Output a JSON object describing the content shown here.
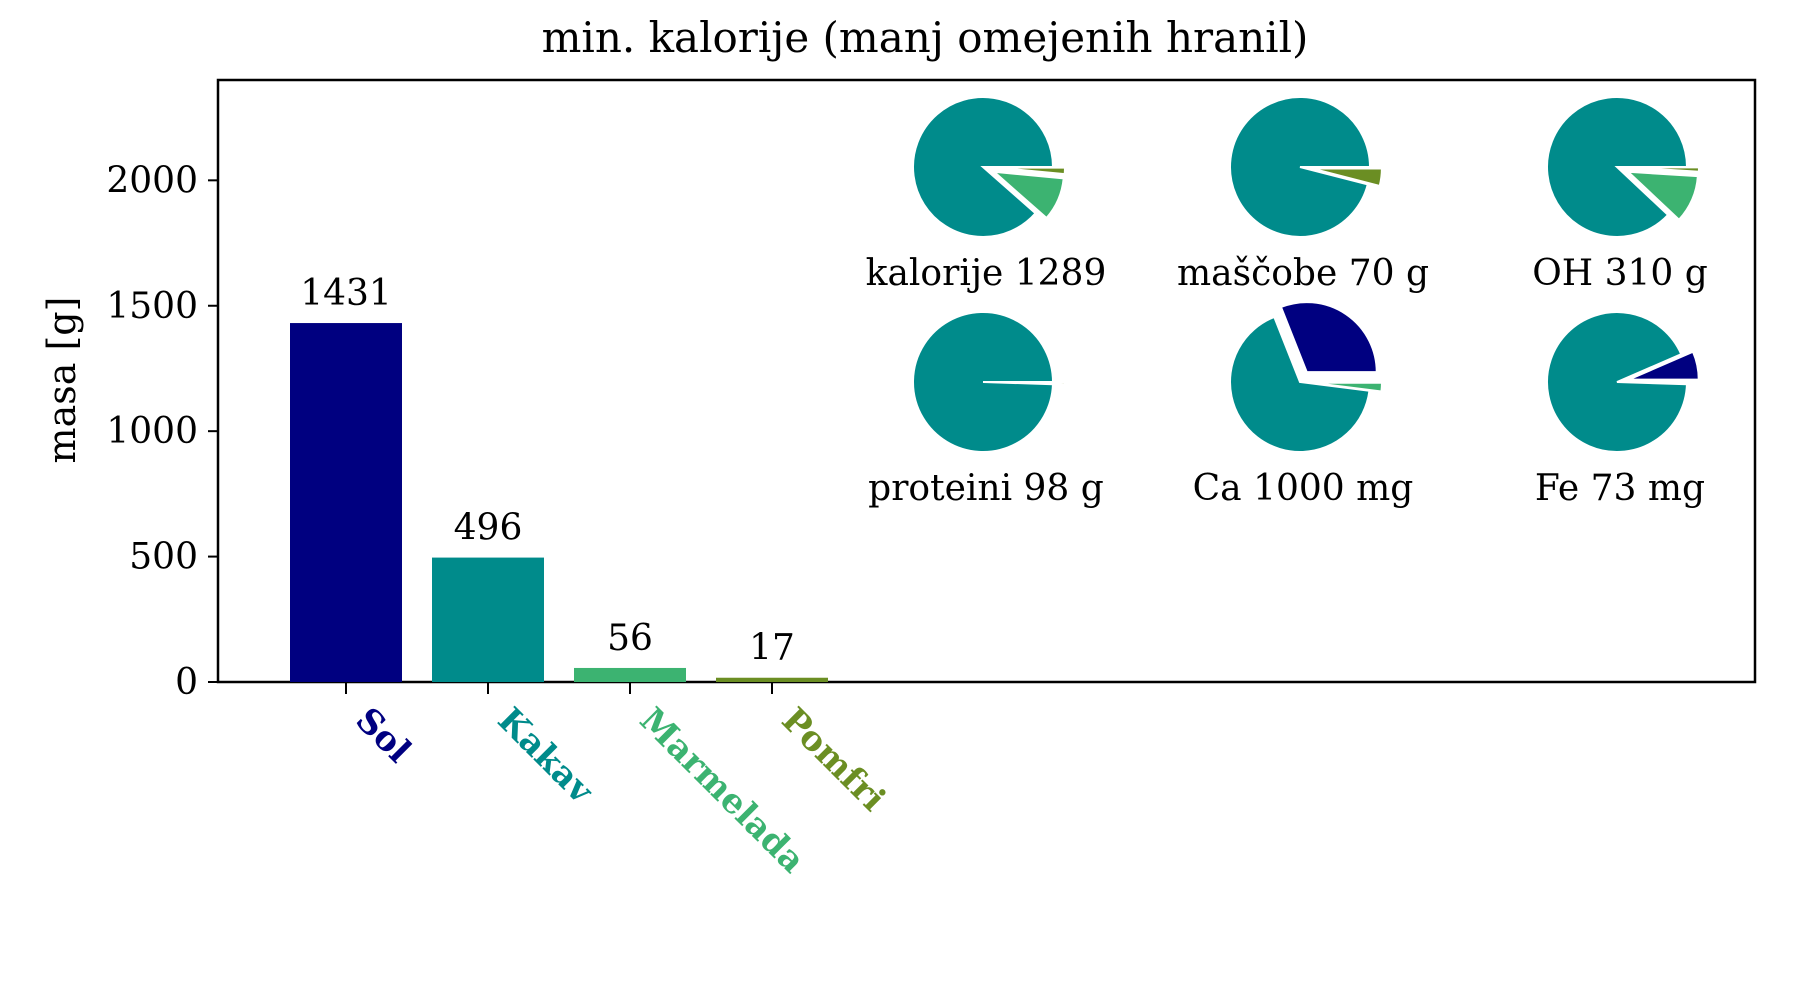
{
  "chart_data": {
    "type": "bar",
    "title": "min. kalorije (manj omejenih hranil)",
    "xlabel": "",
    "ylabel": "masa [g]",
    "ylim": [
      0,
      2400
    ],
    "yticks": [
      0,
      500,
      1000,
      1500,
      2000
    ],
    "categories": [
      "Sol",
      "Kakav",
      "Marmelada",
      "Pomfri"
    ],
    "values": [
      1431,
      496,
      56,
      17
    ],
    "data_labels": [
      "1431",
      "496",
      "56",
      "17"
    ],
    "colors": {
      "Sol": "#000080",
      "Kakav": "#008B8B",
      "Marmelada": "#3CB371",
      "Pomfri": "#6B8E23"
    },
    "grid": false,
    "inset_pies": [
      {
        "label": "kalorije 1289",
        "shares": {
          "Sol": 0.0,
          "Kakav": 0.885,
          "Marmelada": 0.1,
          "Pomfri": 0.015
        }
      },
      {
        "label": "maščobe 70 g",
        "shares": {
          "Sol": 0.0,
          "Kakav": 0.96,
          "Marmelada": 0.0,
          "Pomfri": 0.04
        }
      },
      {
        "label": "OH 310 g",
        "shares": {
          "Sol": 0.0,
          "Kakav": 0.88,
          "Marmelada": 0.11,
          "Pomfri": 0.01
        }
      },
      {
        "label": "proteini 98 g",
        "shares": {
          "Sol": 0.0,
          "Kakav": 0.995,
          "Marmelada": 0.0,
          "Pomfri": 0.005
        }
      },
      {
        "label": "Ca 1000 mg",
        "shares": {
          "Sol": 0.31,
          "Kakav": 0.67,
          "Marmelada": 0.02,
          "Pomfri": 0.0
        }
      },
      {
        "label": "Fe 73 mg",
        "shares": {
          "Sol": 0.065,
          "Kakav": 0.93,
          "Marmelada": 0.002,
          "Pomfri": 0.003
        }
      }
    ]
  }
}
